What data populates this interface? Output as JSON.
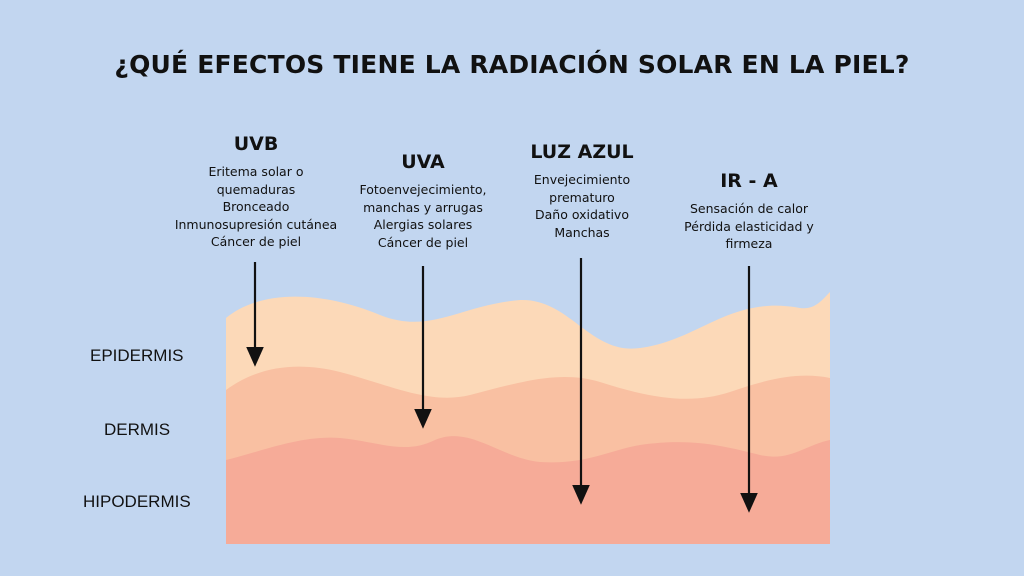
{
  "title": "¿QUÉ EFECTOS TIENE LA RADIACIÓN SOLAR EN LA PIEL?",
  "radiations": [
    {
      "name": "UVB",
      "effects": [
        "Eritema solar o",
        "quemaduras",
        "Bronceado",
        "Inmunosupresión cutánea",
        "Cáncer de piel"
      ],
      "penetrates_to": "EPIDERMIS"
    },
    {
      "name": "UVA",
      "effects": [
        "Fotoenvejecimiento,",
        "manchas  y arrugas",
        "Alergias solares",
        "Cáncer de piel"
      ],
      "penetrates_to": "DERMIS"
    },
    {
      "name": "LUZ AZUL",
      "effects": [
        "Envejecimiento",
        "prematuro",
        "Daño oxidativo",
        "Manchas"
      ],
      "penetrates_to": "HIPODERMIS"
    },
    {
      "name": "IR - A",
      "effects": [
        "Sensación de calor",
        "Pérdida elasticidad y",
        "firmeza"
      ],
      "penetrates_to": "HIPODERMIS"
    }
  ],
  "layers": [
    {
      "name": "EPIDERMIS",
      "color": "#fcd9b8"
    },
    {
      "name": "DERMIS",
      "color": "#f9c0a2"
    },
    {
      "name": "HIPODERMIS",
      "color": "#f6ab98"
    }
  ]
}
